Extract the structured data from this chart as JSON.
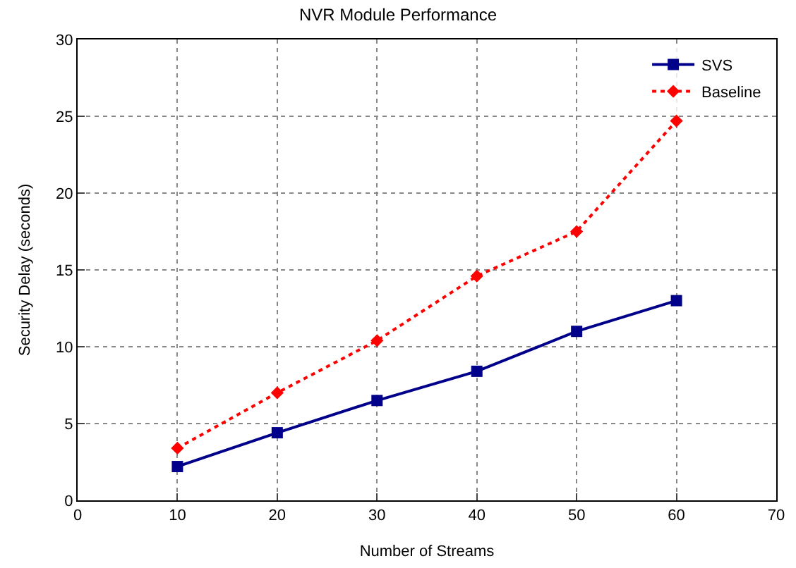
{
  "chart_data": {
    "type": "line",
    "title": "NVR Module Performance",
    "xlabel": "Number of Streams",
    "ylabel": "Security Delay (seconds)",
    "x": [
      10,
      20,
      30,
      40,
      50,
      60
    ],
    "series": [
      {
        "name": "SVS",
        "color": "#00008b",
        "values": [
          2.2,
          4.4,
          6.5,
          8.4,
          11.0,
          13.0
        ],
        "marker": "square",
        "line_style": "solid"
      },
      {
        "name": "Baseline",
        "color": "#ff0000",
        "values": [
          3.4,
          7.0,
          10.4,
          14.6,
          17.5,
          24.7
        ],
        "marker": "diamond",
        "line_style": "dotted"
      }
    ],
    "xlim": [
      0,
      70
    ],
    "xticks": [
      0,
      10,
      20,
      30,
      40,
      50,
      60,
      70
    ],
    "ylim": [
      0,
      30
    ],
    "yticks": [
      0,
      5,
      10,
      15,
      20,
      25,
      30
    ],
    "grid": true,
    "legend": "top right"
  }
}
